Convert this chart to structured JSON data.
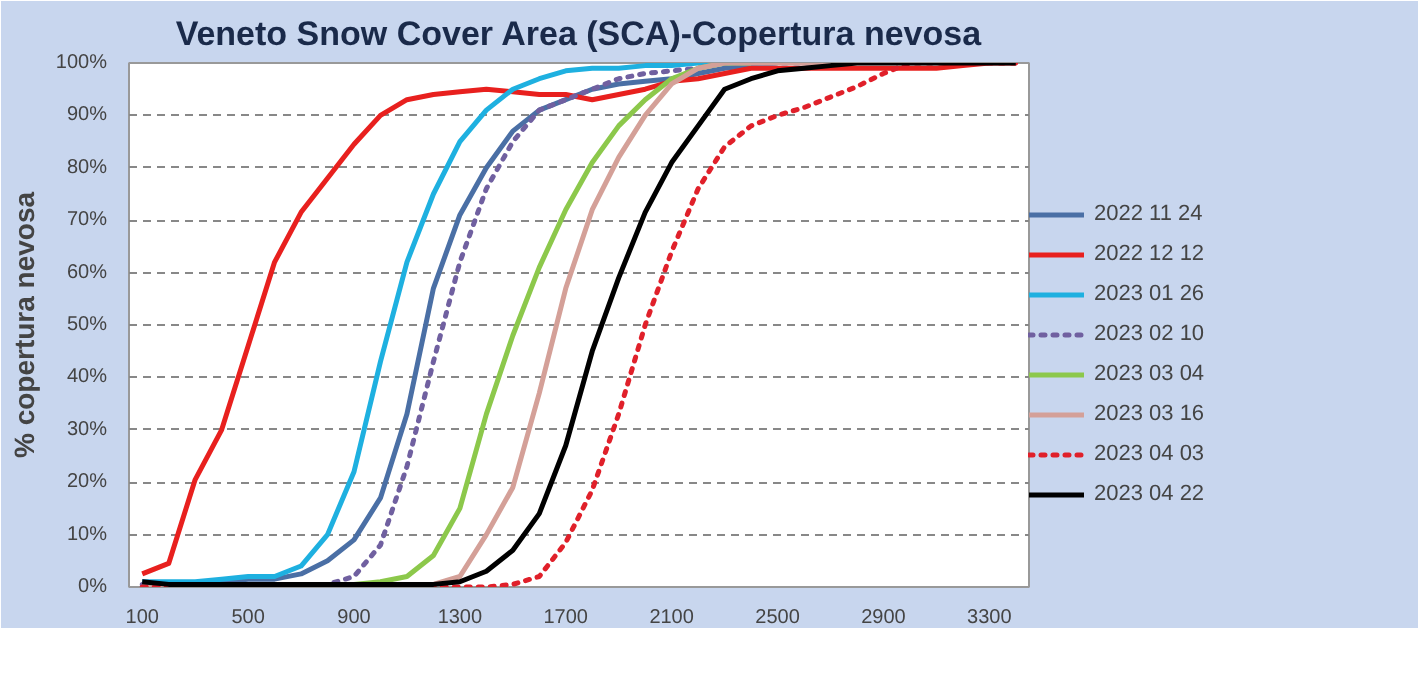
{
  "chart_data": {
    "type": "line",
    "title": "Veneto Snow Cover Area (SCA)-Copertura nevosa",
    "ylabel": "% copertura nevosa",
    "x": [
      100,
      200,
      300,
      400,
      500,
      600,
      700,
      800,
      900,
      1000,
      1100,
      1200,
      1300,
      1400,
      1500,
      1600,
      1700,
      1800,
      1900,
      2000,
      2100,
      2200,
      2300,
      2400,
      2500,
      2600,
      2700,
      2800,
      2900,
      3000,
      3100,
      3200,
      3300,
      3400
    ],
    "xlim": [
      50,
      3450
    ],
    "xticks": [
      100,
      500,
      900,
      1300,
      1700,
      2100,
      2500,
      2900,
      3300
    ],
    "ylim": [
      0,
      100
    ],
    "yticks": [
      {
        "value": 0,
        "label": "0%"
      },
      {
        "value": 10,
        "label": "10%"
      },
      {
        "value": 20,
        "label": "20%"
      },
      {
        "value": 30,
        "label": "30%"
      },
      {
        "value": 40,
        "label": "40%"
      },
      {
        "value": 50,
        "label": "50%"
      },
      {
        "value": 60,
        "label": "60%"
      },
      {
        "value": 70,
        "label": "70%"
      },
      {
        "value": 80,
        "label": "80%"
      },
      {
        "value": 90,
        "label": "90%"
      },
      {
        "value": 100,
        "label": "100%"
      }
    ],
    "grid": "y",
    "legend": "right",
    "marker": "none",
    "series": [
      {
        "name": "2022 11 24",
        "color": "#4a6fa5",
        "line_style": "solid",
        "values": [
          1,
          0.5,
          0.5,
          1,
          1.5,
          1.5,
          2.5,
          5,
          9,
          17,
          33,
          57,
          71,
          80,
          87,
          91,
          93,
          95,
          96,
          96.5,
          97,
          98,
          99,
          99.5,
          100,
          null,
          null,
          null,
          null,
          null,
          null,
          null,
          null,
          null
        ]
      },
      {
        "name": "2022 12 12",
        "color": "#e8201e",
        "line_style": "solid",
        "values": [
          2.5,
          4.5,
          20.5,
          30,
          46,
          62,
          71.5,
          78,
          84.5,
          90,
          93,
          94,
          94.5,
          95,
          94.5,
          94,
          94,
          93,
          94,
          95,
          96.5,
          97,
          98,
          99,
          99,
          99,
          99,
          99,
          99,
          99,
          99,
          99.5,
          100,
          100
        ]
      },
      {
        "name": "2023 01 26",
        "color": "#1eb0e0",
        "line_style": "solid",
        "values": [
          1,
          1,
          1,
          1.5,
          2,
          2,
          4,
          10,
          22,
          43,
          62,
          75,
          85,
          91,
          95,
          97,
          98.5,
          99,
          99,
          99.5,
          99.5,
          100,
          100,
          100,
          null,
          null,
          null,
          null,
          null,
          null,
          null,
          null,
          null,
          null
        ]
      },
      {
        "name": "2023 02 10",
        "color": "#7060a0",
        "line_style": "dotted",
        "values": [
          0.5,
          0.5,
          0.5,
          0.5,
          0.5,
          0.5,
          0.5,
          0.5,
          2,
          8,
          23,
          43,
          62,
          76,
          85,
          91,
          93,
          95,
          97,
          98,
          98.5,
          99,
          100,
          100,
          100,
          100,
          100,
          null,
          null,
          null,
          null,
          null,
          null,
          null
        ]
      },
      {
        "name": "2023 03 04",
        "color": "#8cc84b",
        "line_style": "solid",
        "values": [
          null,
          null,
          null,
          null,
          null,
          null,
          null,
          0,
          0.5,
          1,
          2,
          6,
          15,
          33,
          48,
          61,
          72,
          81,
          88,
          93,
          97,
          99,
          100,
          100,
          null,
          null,
          null,
          null,
          null,
          null,
          null,
          null,
          null,
          null
        ]
      },
      {
        "name": "2023 03 16",
        "color": "#d4a098",
        "line_style": "solid",
        "values": [
          0,
          0,
          0,
          0,
          0,
          0,
          0,
          0,
          0,
          0,
          0,
          0.5,
          2,
          10,
          19,
          37,
          57,
          72,
          82,
          90,
          96,
          99,
          100,
          100,
          100,
          100,
          100,
          null,
          null,
          null,
          null,
          null,
          null,
          null
        ]
      },
      {
        "name": "2023 04 03",
        "color": "#e0202a",
        "line_style": "dotted",
        "values": [
          0,
          0,
          0,
          0,
          0,
          0,
          0,
          0,
          0,
          0,
          0,
          0,
          0,
          0,
          0.5,
          2,
          8.5,
          18.5,
          33,
          50,
          64,
          76,
          84,
          88,
          90,
          91.5,
          93.5,
          95.5,
          98,
          100,
          100,
          100,
          100,
          100
        ]
      },
      {
        "name": "2023 04 22",
        "color": "#000000",
        "line_style": "solid",
        "values": [
          1,
          0.5,
          0.5,
          0.5,
          0.5,
          0.5,
          0.5,
          0.5,
          0.5,
          0.5,
          0.5,
          0.5,
          1,
          3,
          7,
          14,
          27,
          45,
          59,
          71.5,
          81,
          88,
          95,
          97,
          98.5,
          99,
          99.5,
          100,
          100,
          100,
          100,
          100,
          100,
          100
        ]
      }
    ]
  }
}
